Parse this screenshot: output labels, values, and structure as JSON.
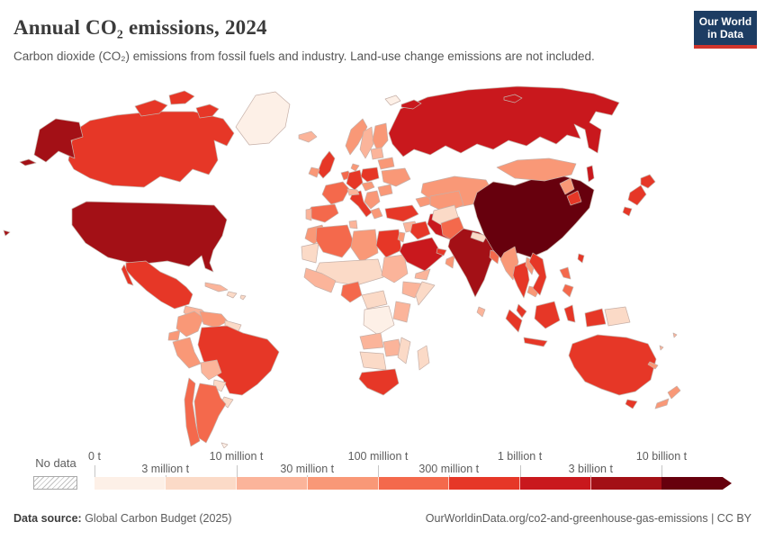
{
  "header": {
    "title": "Annual CO₂ emissions, 2024",
    "subtitle": "Carbon dioxide (CO₂) emissions from fossil fuels and industry. Land-use change emissions are not included.",
    "logo": {
      "line1": "Our World",
      "line2": "in Data",
      "bg": "#1d3d63",
      "accent": "#d0352c"
    }
  },
  "legend": {
    "no_data_label": "No data",
    "tick_labels": [
      "0 t",
      "3 million t",
      "10 million t",
      "30 million t",
      "100 million t",
      "300 million t",
      "1 billion t",
      "3 billion t",
      "10 billion t"
    ]
  },
  "footer": {
    "source_label": "Data source:",
    "source": " Global Carbon Budget (2025)",
    "url_note": "OurWorldinData.org/co2-and-greenhouse-gas-emissions | CC BY"
  },
  "chart_data": {
    "type": "heatmap",
    "subtype": "world-choropleth",
    "title": "Annual CO₂ emissions, 2024",
    "unit": "tonnes of CO₂",
    "scale": "log-like binned scale, 0 t to 10+ billion t",
    "legend_position": "bottom",
    "bins": [
      {
        "label": "0 t – 3 million t",
        "color": "#fdf0e7"
      },
      {
        "label": "3 – 10 million t",
        "color": "#fbdac7"
      },
      {
        "label": "10 – 30 million t",
        "color": "#fbb49a"
      },
      {
        "label": "30 – 100 million t",
        "color": "#f99877"
      },
      {
        "label": "100 – 300 million t",
        "color": "#f4694c"
      },
      {
        "label": "300 million – 1 billion t",
        "color": "#e63727"
      },
      {
        "label": "1 – 3 billion t",
        "color": "#c9181d"
      },
      {
        "label": "3 – 10 billion t",
        "color": "#a31016"
      },
      {
        "label": "> 10 billion t",
        "color": "#67000d"
      }
    ],
    "regions": [
      {
        "id": "greenland",
        "name": "Greenland",
        "bin": 0
      },
      {
        "id": "canada",
        "name": "Canada",
        "bin": 5
      },
      {
        "id": "alaska",
        "name": "United States (Alaska)",
        "bin": 7
      },
      {
        "id": "usa",
        "name": "United States",
        "bin": 7
      },
      {
        "id": "hawaii",
        "name": "United States (Hawaii)",
        "bin": 7
      },
      {
        "id": "mexico",
        "name": "Mexico",
        "bin": 5
      },
      {
        "id": "central-america",
        "name": "Central America",
        "bin": 2
      },
      {
        "id": "cuba",
        "name": "Cuba",
        "bin": 2
      },
      {
        "id": "hispaniola",
        "name": "Hispaniola",
        "bin": 1
      },
      {
        "id": "caribbean",
        "name": "Caribbean islands",
        "bin": 1
      },
      {
        "id": "colombia",
        "name": "Colombia",
        "bin": 3
      },
      {
        "id": "venezuela",
        "name": "Venezuela",
        "bin": 3
      },
      {
        "id": "guyanas",
        "name": "Guyana & Suriname",
        "bin": 1
      },
      {
        "id": "ecuador",
        "name": "Ecuador",
        "bin": 3
      },
      {
        "id": "peru",
        "name": "Peru",
        "bin": 3
      },
      {
        "id": "brazil",
        "name": "Brazil",
        "bin": 5
      },
      {
        "id": "bolivia",
        "name": "Bolivia",
        "bin": 2
      },
      {
        "id": "paraguay",
        "name": "Paraguay",
        "bin": 1
      },
      {
        "id": "uruguay",
        "name": "Uruguay",
        "bin": 1
      },
      {
        "id": "argentina",
        "name": "Argentina",
        "bin": 4
      },
      {
        "id": "chile",
        "name": "Chile",
        "bin": 4
      },
      {
        "id": "falklands",
        "name": "Falkland Islands",
        "bin": 0
      },
      {
        "id": "iceland",
        "name": "Iceland",
        "bin": 2
      },
      {
        "id": "norway",
        "name": "Norway",
        "bin": 3
      },
      {
        "id": "sweden",
        "name": "Sweden",
        "bin": 2
      },
      {
        "id": "finland",
        "name": "Finland",
        "bin": 3
      },
      {
        "id": "denmark",
        "name": "Denmark",
        "bin": 3
      },
      {
        "id": "uk",
        "name": "United Kingdom",
        "bin": 5
      },
      {
        "id": "ireland",
        "name": "Ireland",
        "bin": 3
      },
      {
        "id": "benelux",
        "name": "Netherlands & Belgium",
        "bin": 4
      },
      {
        "id": "germany",
        "name": "Germany",
        "bin": 5
      },
      {
        "id": "france",
        "name": "France",
        "bin": 4
      },
      {
        "id": "spain",
        "name": "Spain",
        "bin": 4
      },
      {
        "id": "portugal",
        "name": "Portugal",
        "bin": 2
      },
      {
        "id": "italy",
        "name": "Italy",
        "bin": 5
      },
      {
        "id": "alpine",
        "name": "Switzerland & Austria",
        "bin": 2
      },
      {
        "id": "czechia",
        "name": "Czechia & Slovakia",
        "bin": 3
      },
      {
        "id": "poland",
        "name": "Poland",
        "bin": 5
      },
      {
        "id": "baltics",
        "name": "Baltic states",
        "bin": 2
      },
      {
        "id": "belarus",
        "name": "Belarus",
        "bin": 3
      },
      {
        "id": "ukraine",
        "name": "Ukraine",
        "bin": 3
      },
      {
        "id": "romania",
        "name": "Romania",
        "bin": 3
      },
      {
        "id": "balkans",
        "name": "Balkans",
        "bin": 3
      },
      {
        "id": "greece",
        "name": "Greece",
        "bin": 3
      },
      {
        "id": "svalbard",
        "name": "Svalbard",
        "bin": 0
      },
      {
        "id": "morocco",
        "name": "Morocco",
        "bin": 3
      },
      {
        "id": "mauritania",
        "name": "Mauritania & W. Sahara",
        "bin": 1
      },
      {
        "id": "algeria",
        "name": "Algeria",
        "bin": 4
      },
      {
        "id": "tunisia",
        "name": "Tunisia",
        "bin": 2
      },
      {
        "id": "libya",
        "name": "Libya",
        "bin": 3
      },
      {
        "id": "egypt",
        "name": "Egypt",
        "bin": 5
      },
      {
        "id": "sahel",
        "name": "Mali, Niger & Chad",
        "bin": 1
      },
      {
        "id": "sudan",
        "name": "Sudan",
        "bin": 2
      },
      {
        "id": "west-africa",
        "name": "West Africa",
        "bin": 2
      },
      {
        "id": "nigeria",
        "name": "Nigeria",
        "bin": 4
      },
      {
        "id": "central-africa",
        "name": "Cameroon & C.A.R.",
        "bin": 1
      },
      {
        "id": "ethiopia",
        "name": "Ethiopia",
        "bin": 2
      },
      {
        "id": "somalia",
        "name": "Somalia",
        "bin": 1
      },
      {
        "id": "drc",
        "name": "D.R. Congo",
        "bin": 0
      },
      {
        "id": "east-africa",
        "name": "Kenya & Tanzania",
        "bin": 2
      },
      {
        "id": "angola",
        "name": "Angola",
        "bin": 2
      },
      {
        "id": "zambia-zimbabwe",
        "name": "Zambia & Zimbabwe",
        "bin": 2
      },
      {
        "id": "mozambique",
        "name": "Mozambique",
        "bin": 1
      },
      {
        "id": "namibia-botswana",
        "name": "Namibia & Botswana",
        "bin": 1
      },
      {
        "id": "south-africa",
        "name": "South Africa",
        "bin": 5
      },
      {
        "id": "madagascar",
        "name": "Madagascar",
        "bin": 1
      },
      {
        "id": "turkey",
        "name": "Turkey",
        "bin": 5
      },
      {
        "id": "caucasus",
        "name": "Caucasus",
        "bin": 3
      },
      {
        "id": "syria",
        "name": "Syria",
        "bin": 2
      },
      {
        "id": "levant",
        "name": "Israel & Jordan",
        "bin": 3
      },
      {
        "id": "iraq",
        "name": "Iraq",
        "bin": 5
      },
      {
        "id": "iran",
        "name": "Iran",
        "bin": 6
      },
      {
        "id": "saudi-arabia",
        "name": "Saudi Arabia",
        "bin": 6
      },
      {
        "id": "gulf-states",
        "name": "Kuwait, Qatar & UAE",
        "bin": 5
      },
      {
        "id": "oman",
        "name": "Oman",
        "bin": 3
      },
      {
        "id": "yemen",
        "name": "Yemen",
        "bin": 2
      },
      {
        "id": "russia",
        "name": "Russia",
        "bin": 6
      },
      {
        "id": "kazakhstan",
        "name": "Kazakhstan",
        "bin": 3
      },
      {
        "id": "uzbekistan-turkmenistan",
        "name": "Uzbekistan & Turkmenistan",
        "bin": 3
      },
      {
        "id": "afghanistan",
        "name": "Afghanistan",
        "bin": 1
      },
      {
        "id": "pakistan",
        "name": "Pakistan",
        "bin": 4
      },
      {
        "id": "india",
        "name": "India",
        "bin": 7
      },
      {
        "id": "nepal",
        "name": "Nepal",
        "bin": 1
      },
      {
        "id": "bangladesh",
        "name": "Bangladesh",
        "bin": 4
      },
      {
        "id": "sri-lanka",
        "name": "Sri Lanka",
        "bin": 2
      },
      {
        "id": "myanmar",
        "name": "Myanmar",
        "bin": 3
      },
      {
        "id": "thailand",
        "name": "Thailand",
        "bin": 5
      },
      {
        "id": "laos",
        "name": "Laos",
        "bin": 3
      },
      {
        "id": "cambodia",
        "name": "Cambodia",
        "bin": 3
      },
      {
        "id": "vietnam",
        "name": "Vietnam",
        "bin": 5
      },
      {
        "id": "malaysia",
        "name": "Malaysia",
        "bin": 5
      },
      {
        "id": "indonesia",
        "name": "Indonesia",
        "bin": 5
      },
      {
        "id": "philippines",
        "name": "Philippines",
        "bin": 4
      },
      {
        "id": "taiwan",
        "name": "Taiwan",
        "bin": 5
      },
      {
        "id": "china",
        "name": "China",
        "bin": 8
      },
      {
        "id": "mongolia",
        "name": "Mongolia",
        "bin": 3
      },
      {
        "id": "north-korea",
        "name": "North Korea",
        "bin": 3
      },
      {
        "id": "south-korea",
        "name": "South Korea",
        "bin": 5
      },
      {
        "id": "japan",
        "name": "Japan",
        "bin": 5
      },
      {
        "id": "papua-new-guinea",
        "name": "Papua New Guinea",
        "bin": 1
      },
      {
        "id": "australia",
        "name": "Australia",
        "bin": 5
      },
      {
        "id": "new-zealand",
        "name": "New Zealand",
        "bin": 3
      },
      {
        "id": "new-caledonia",
        "name": "New Caledonia",
        "bin": 3
      },
      {
        "id": "pacific-islands",
        "name": "Pacific islands",
        "bin": 2
      }
    ]
  }
}
